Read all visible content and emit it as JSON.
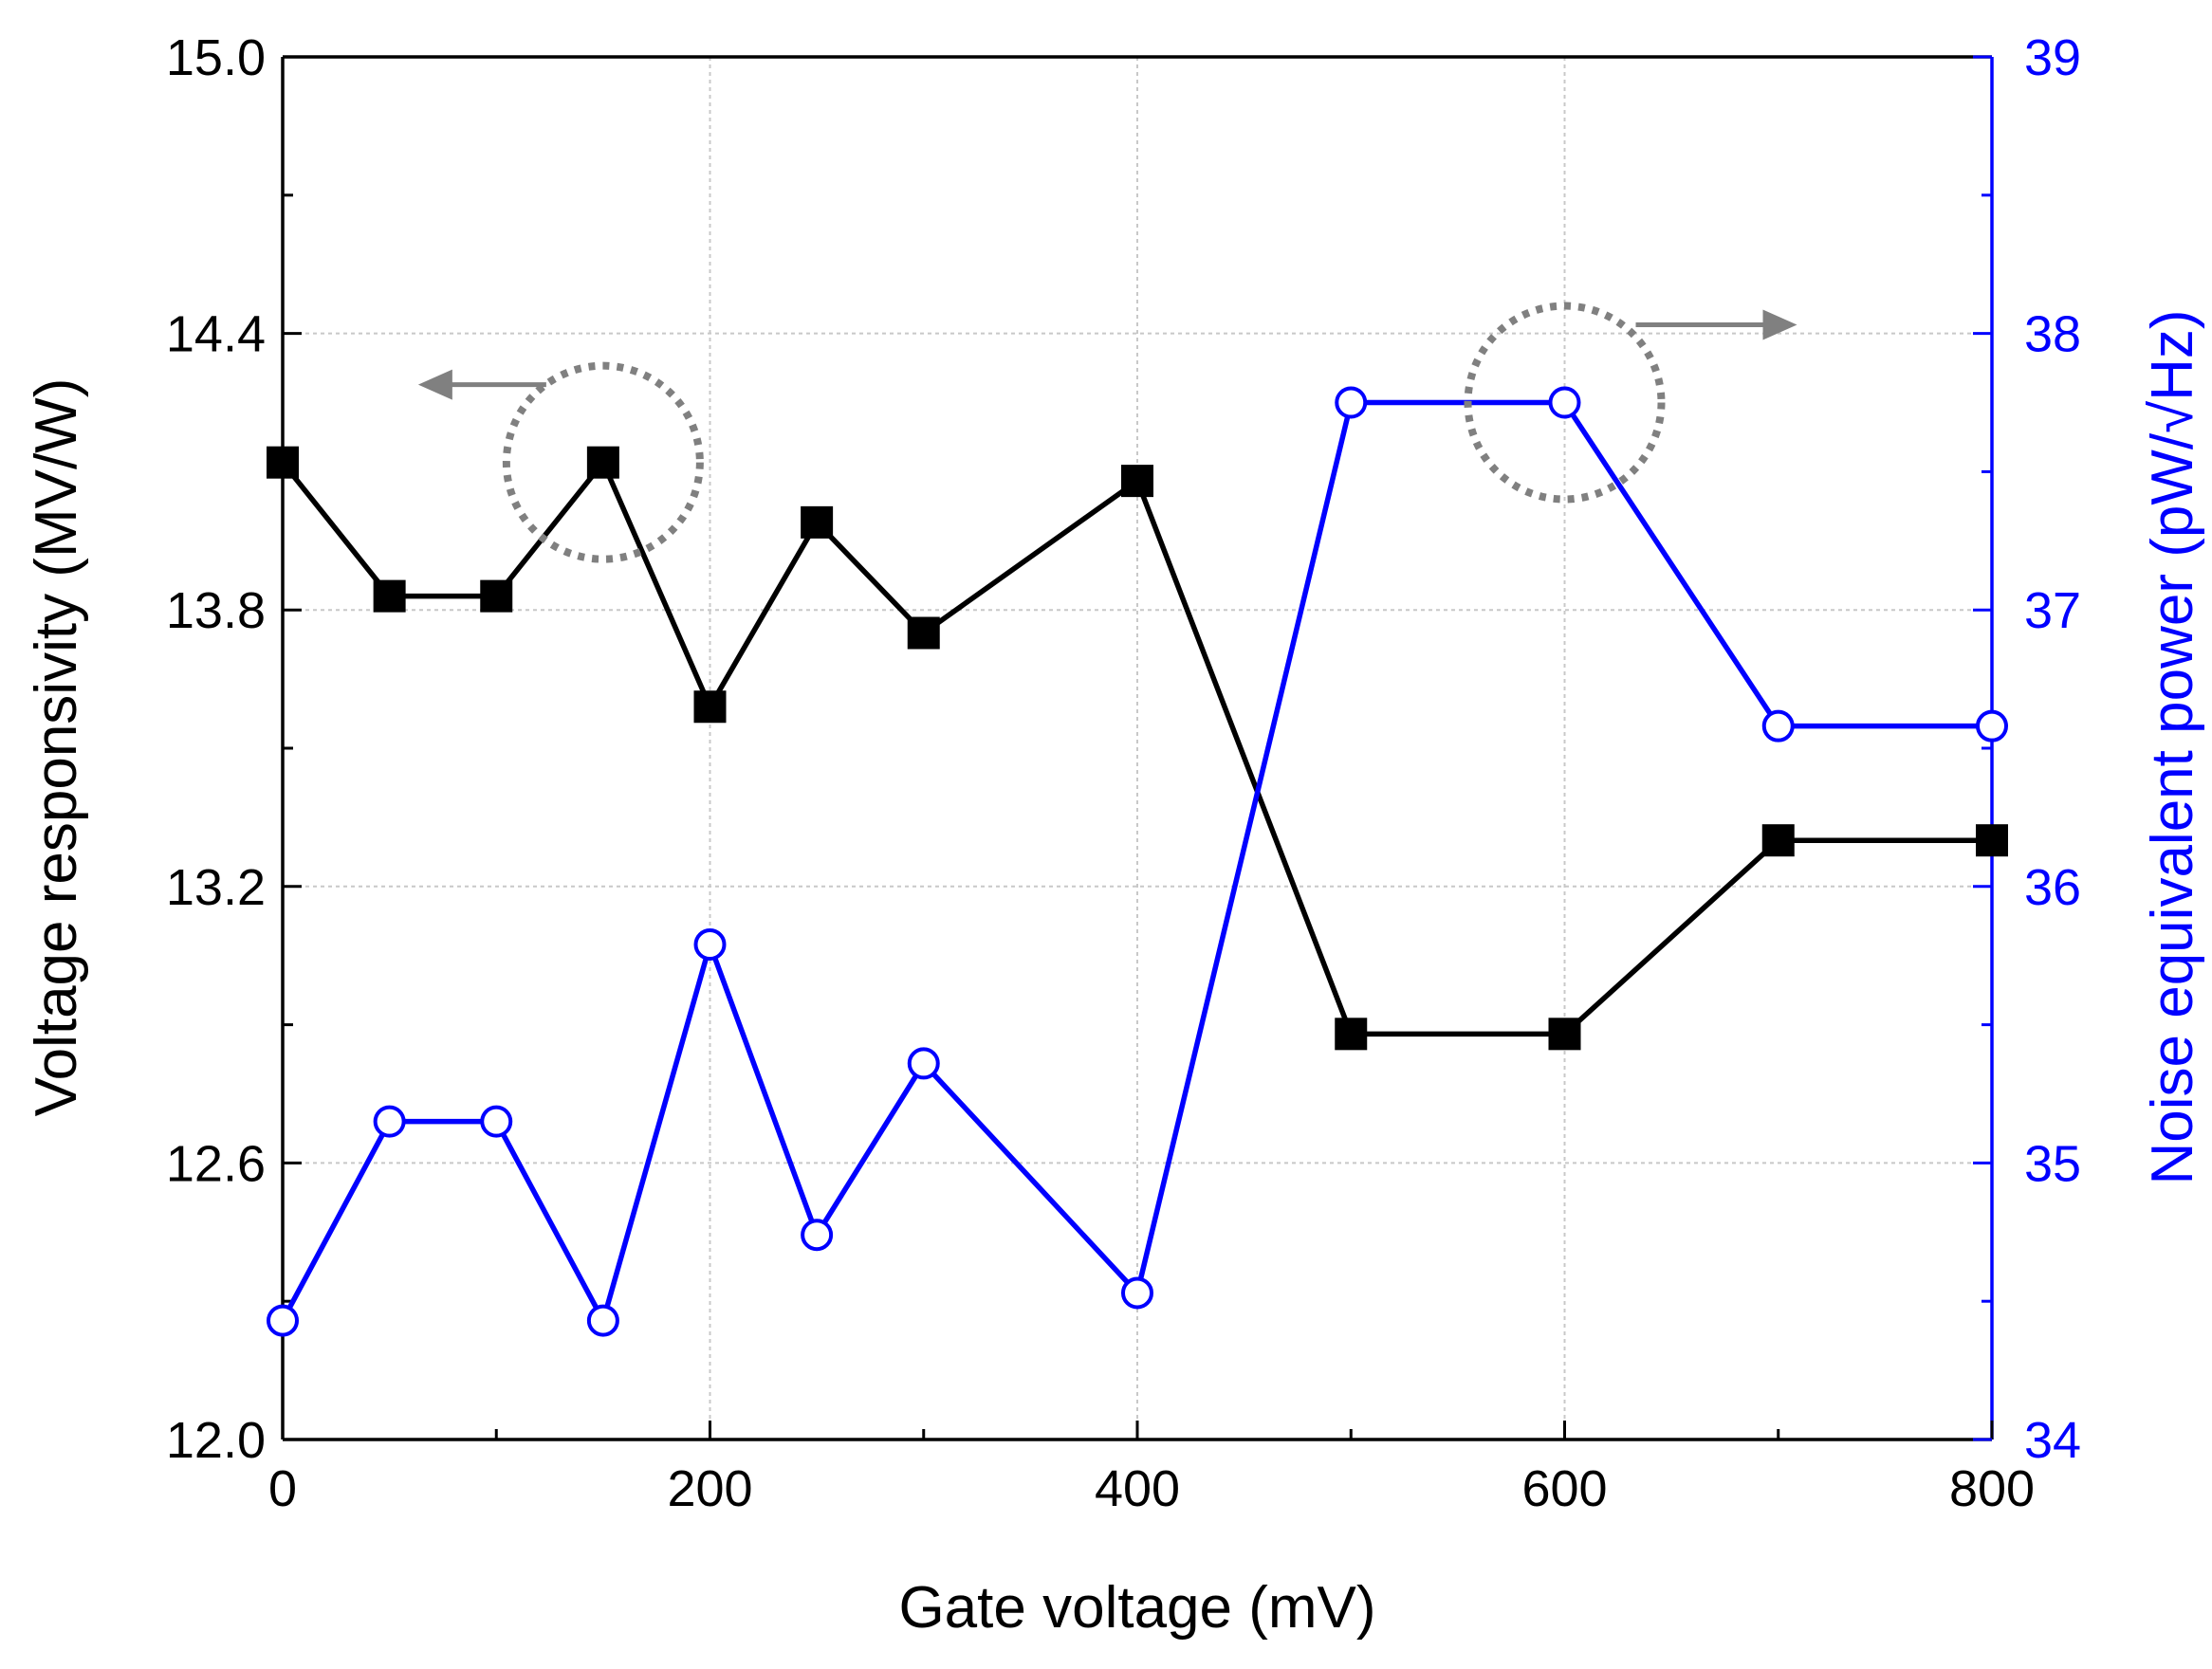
{
  "chart_data": {
    "type": "line",
    "title": "",
    "xlabel": "Gate voltage (mV)",
    "ylabel_left": "Voltage responsivity (MV/W)",
    "ylabel_right": "Noise equivalent power (pW/√Hz)",
    "xlim": [
      0,
      800
    ],
    "ylim_left": [
      12.0,
      15.0
    ],
    "ylim_right": [
      34,
      39
    ],
    "x_ticks": [
      "0",
      "200",
      "400",
      "600",
      "800"
    ],
    "y_left_ticks": [
      "12.0",
      "12.6",
      "13.2",
      "13.8",
      "14.4",
      "15.0"
    ],
    "y_right_ticks": [
      "34",
      "35",
      "36",
      "37",
      "38",
      "39"
    ],
    "grid": true,
    "colors": {
      "left_series": "#000000",
      "right_series": "#0000ff",
      "grid": "#c8c8c8",
      "marker_arrow": "#808080"
    },
    "series": [
      {
        "name": "Voltage responsivity",
        "axis": "left",
        "marker": "filled-square",
        "x": [
          0,
          50,
          100,
          150,
          200,
          250,
          300,
          400,
          500,
          600,
          700,
          800
        ],
        "values": [
          14.12,
          13.83,
          13.83,
          14.12,
          13.59,
          13.99,
          13.75,
          14.08,
          12.88,
          12.88,
          13.3,
          13.3
        ]
      },
      {
        "name": "Noise equivalent power",
        "axis": "right",
        "marker": "open-circle",
        "x": [
          0,
          50,
          100,
          150,
          200,
          250,
          300,
          400,
          500,
          600,
          700,
          800
        ],
        "values": [
          34.43,
          35.15,
          35.15,
          34.43,
          35.79,
          34.74,
          35.36,
          34.53,
          37.75,
          37.75,
          36.58,
          36.58
        ]
      }
    ],
    "annotations": [
      {
        "type": "circle-arrow",
        "around_series": 0,
        "at_x": 150,
        "arrow_direction": "left",
        "meaning": "left axis"
      },
      {
        "type": "circle-arrow",
        "around_series": 1,
        "at_x": 600,
        "arrow_direction": "right",
        "meaning": "right axis"
      }
    ]
  }
}
